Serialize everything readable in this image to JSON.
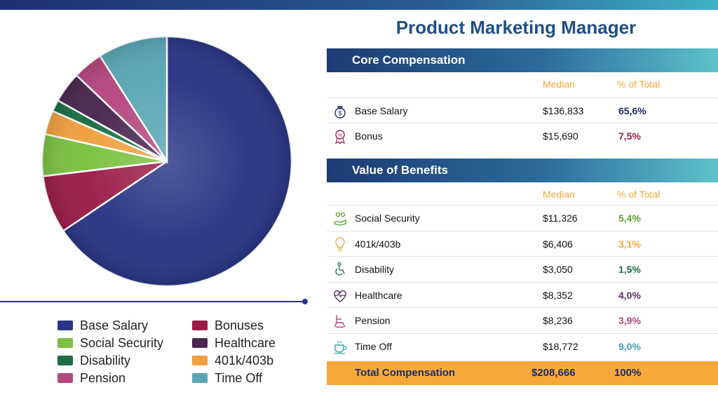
{
  "title": "Product Marketing Manager",
  "core": {
    "header": "Core Compensation",
    "col_median": "Median",
    "col_pct": "% of Total",
    "rows": [
      {
        "label": "Base Salary",
        "median": "$136,833",
        "pct": "65,6%",
        "pct_color": "#1e2b66",
        "icon": "money-bag-icon"
      },
      {
        "label": "Bonus",
        "median": "$15,690",
        "pct": "7,5%",
        "pct_color": "#9b1d4a",
        "icon": "award-ribbon-icon"
      }
    ]
  },
  "benefits": {
    "header": "Value of Benefits",
    "col_median": "Median",
    "col_pct": "% of Total",
    "rows": [
      {
        "label": "Social Security",
        "median": "$11,326",
        "pct": "5,4%",
        "pct_color": "#5aa02c",
        "icon": "people-hand-icon"
      },
      {
        "label": "401k/403b",
        "median": "$6,406",
        "pct": "3,1%",
        "pct_color": "#f0a93b",
        "icon": "lightbulb-icon"
      },
      {
        "label": "Disability",
        "median": "$3,050",
        "pct": "1,5%",
        "pct_color": "#1b6e45",
        "icon": "wheelchair-icon"
      },
      {
        "label": "Healthcare",
        "median": "$8,352",
        "pct": "4,0%",
        "pct_color": "#5b2a5e",
        "icon": "heart-pulse-icon"
      },
      {
        "label": "Pension",
        "median": "$8,236",
        "pct": "3,9%",
        "pct_color": "#b0477f",
        "icon": "rocking-chair-icon"
      },
      {
        "label": "Time Off",
        "median": "$18,772",
        "pct": "9,0%",
        "pct_color": "#3f9fb0",
        "icon": "coffee-cup-icon"
      }
    ]
  },
  "total": {
    "label": "Total Compensation",
    "median": "$208,666",
    "pct": "100%"
  },
  "chart_data": {
    "type": "pie",
    "labels": [
      "Base Salary",
      "Bonuses",
      "Social Security",
      "401k/403b",
      "Disability",
      "Healthcare",
      "Pension",
      "Time Off"
    ],
    "values": [
      65.6,
      7.5,
      5.4,
      3.1,
      1.5,
      4.0,
      3.9,
      9.0
    ],
    "colors": [
      "#2a3585",
      "#9b1d4a",
      "#7cc142",
      "#f0a040",
      "#1b6e45",
      "#4a2750",
      "#b5487e",
      "#5aa6b5"
    ],
    "legend": [
      "Base Salary",
      "Bonuses",
      "Social Security",
      "Healthcare",
      "Disability",
      "401k/403b",
      "Pension",
      "Time Off"
    ],
    "legend_colors": [
      "#2a3585",
      "#9b1d4a",
      "#7cc142",
      "#4a2750",
      "#1b6e45",
      "#f0a040",
      "#b5487e",
      "#5aa6b5"
    ],
    "legend_placement": "bottom"
  }
}
